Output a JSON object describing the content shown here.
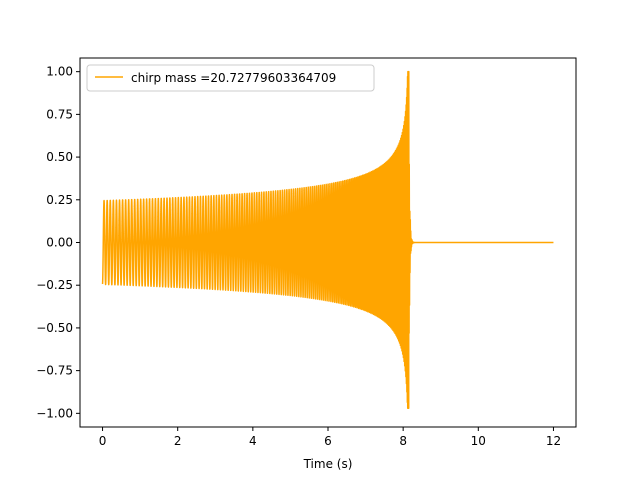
{
  "chart_data": {
    "type": "line",
    "title": "",
    "xlabel": "Time (s)",
    "ylabel": "",
    "xlim": [
      -0.6,
      12.6
    ],
    "ylim": [
      -1.08,
      1.08
    ],
    "xticks": [
      0,
      2,
      4,
      6,
      8,
      10,
      12
    ],
    "yticks": [
      -1.0,
      -0.75,
      -0.5,
      -0.25,
      0.0,
      0.25,
      0.5,
      0.75,
      1.0
    ],
    "xtick_labels": [
      "0",
      "2",
      "4",
      "6",
      "8",
      "10",
      "12"
    ],
    "ytick_labels": [
      "−1.00",
      "−0.75",
      "−0.50",
      "−0.25",
      "0.00",
      "0.25",
      "0.50",
      "0.75",
      "1.00"
    ],
    "grid": false,
    "legend_position": "top-left",
    "series": [
      {
        "name": "chirp mass =20.72779603364709",
        "color": "#ffa500",
        "shape": "chirp",
        "t_start": 0.0,
        "t_merger": 8.15,
        "t_end": 12.0,
        "initial_amplitude": 0.245,
        "peak_amplitude": 1.0,
        "min_value": -0.97,
        "post_merger_value": 0.0
      }
    ]
  }
}
